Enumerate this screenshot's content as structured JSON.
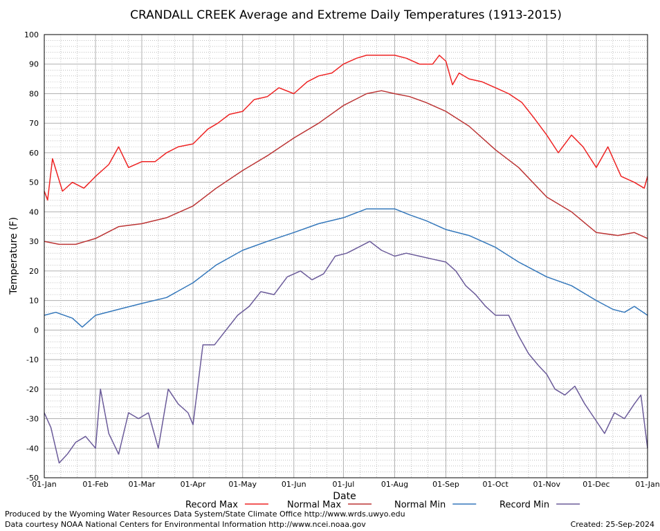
{
  "chart_data": {
    "type": "line",
    "title": "CRANDALL CREEK Average and Extreme Daily Temperatures (1913-2015)",
    "xlabel": "Date",
    "ylabel": "Temperature (F)",
    "ylim": [
      -50,
      100
    ],
    "yticks": [
      100,
      90,
      80,
      70,
      60,
      50,
      40,
      30,
      20,
      10,
      0,
      -10,
      -20,
      -30,
      -40,
      -50
    ],
    "xticks": [
      "01-Jan",
      "01-Feb",
      "01-Mar",
      "01-Apr",
      "01-May",
      "01-Jun",
      "01-Jul",
      "01-Aug",
      "01-Sep",
      "01-Oct",
      "01-Nov",
      "01-Dec",
      "01-Jan"
    ],
    "xtick_days": [
      1,
      32,
      60,
      91,
      121,
      152,
      182,
      213,
      244,
      274,
      305,
      335,
      366
    ],
    "x_unit": "day of year",
    "grid": true,
    "legend_position": "bottom",
    "series": [
      {
        "name": "Record Max",
        "color": "#ee2222",
        "x": [
          1,
          3,
          6,
          12,
          18,
          25,
          32,
          40,
          46,
          52,
          60,
          68,
          75,
          82,
          91,
          100,
          106,
          113,
          121,
          128,
          136,
          143,
          152,
          160,
          167,
          175,
          182,
          190,
          196,
          205,
          213,
          220,
          228,
          236,
          240,
          244,
          248,
          252,
          258,
          266,
          274,
          282,
          290,
          297,
          305,
          312,
          320,
          327,
          335,
          342,
          350,
          358,
          364,
          366
        ],
        "y": [
          47,
          44,
          58,
          47,
          50,
          48,
          52,
          56,
          62,
          55,
          57,
          57,
          60,
          62,
          63,
          68,
          70,
          73,
          74,
          78,
          79,
          82,
          80,
          84,
          86,
          87,
          90,
          92,
          93,
          93,
          93,
          92,
          90,
          90,
          93,
          91,
          83,
          87,
          85,
          84,
          82,
          80,
          77,
          72,
          66,
          60,
          66,
          62,
          55,
          62,
          52,
          50,
          48,
          52
        ]
      },
      {
        "name": "Normal Max",
        "color": "#bb3333",
        "x": [
          1,
          10,
          20,
          32,
          46,
          60,
          75,
          91,
          105,
          121,
          136,
          152,
          167,
          182,
          196,
          205,
          213,
          222,
          232,
          244,
          258,
          274,
          288,
          305,
          320,
          335,
          348,
          358,
          366
        ],
        "y": [
          30,
          29,
          29,
          31,
          35,
          36,
          38,
          42,
          48,
          54,
          59,
          65,
          70,
          76,
          80,
          81,
          80,
          79,
          77,
          74,
          69,
          61,
          55,
          45,
          40,
          33,
          32,
          33,
          31
        ]
      },
      {
        "name": "Normal Min",
        "color": "#3377bb",
        "x": [
          1,
          8,
          18,
          24,
          32,
          46,
          60,
          75,
          91,
          105,
          121,
          136,
          152,
          167,
          182,
          196,
          205,
          213,
          222,
          232,
          244,
          258,
          274,
          288,
          305,
          320,
          335,
          345,
          352,
          358,
          366
        ],
        "y": [
          5,
          6,
          4,
          1,
          5,
          7,
          9,
          11,
          16,
          22,
          27,
          30,
          33,
          36,
          38,
          41,
          41,
          41,
          39,
          37,
          34,
          32,
          28,
          23,
          18,
          15,
          10,
          7,
          6,
          8,
          5
        ]
      },
      {
        "name": "Record Min",
        "color": "#6a5a99",
        "x": [
          1,
          5,
          10,
          15,
          20,
          26,
          32,
          35,
          40,
          46,
          52,
          58,
          64,
          70,
          76,
          82,
          88,
          91,
          97,
          104,
          111,
          118,
          125,
          132,
          140,
          148,
          156,
          163,
          170,
          177,
          184,
          191,
          198,
          205,
          213,
          220,
          228,
          236,
          244,
          250,
          256,
          262,
          268,
          274,
          282,
          288,
          294,
          300,
          305,
          310,
          316,
          322,
          328,
          334,
          340,
          346,
          352,
          358,
          362,
          366
        ],
        "y": [
          -28,
          -33,
          -45,
          -42,
          -38,
          -36,
          -40,
          -20,
          -35,
          -42,
          -28,
          -30,
          -28,
          -40,
          -20,
          -25,
          -28,
          -32,
          -5,
          -5,
          0,
          5,
          8,
          13,
          12,
          18,
          20,
          17,
          19,
          25,
          26,
          28,
          30,
          27,
          25,
          26,
          25,
          24,
          23,
          20,
          15,
          12,
          8,
          5,
          5,
          -2,
          -8,
          -12,
          -15,
          -20,
          -22,
          -19,
          -25,
          -30,
          -35,
          -28,
          -30,
          -25,
          -22,
          -40
        ]
      }
    ]
  },
  "footer": {
    "produced_by": "Produced by the Wyoming Water Resources Data System/State Climate Office http://www.wrds.uwyo.edu",
    "courtesy": "Data courtesy NOAA National Centers for Environmental Information http://www.ncei.noaa.gov",
    "created": "Created:  25-Sep-2024"
  }
}
